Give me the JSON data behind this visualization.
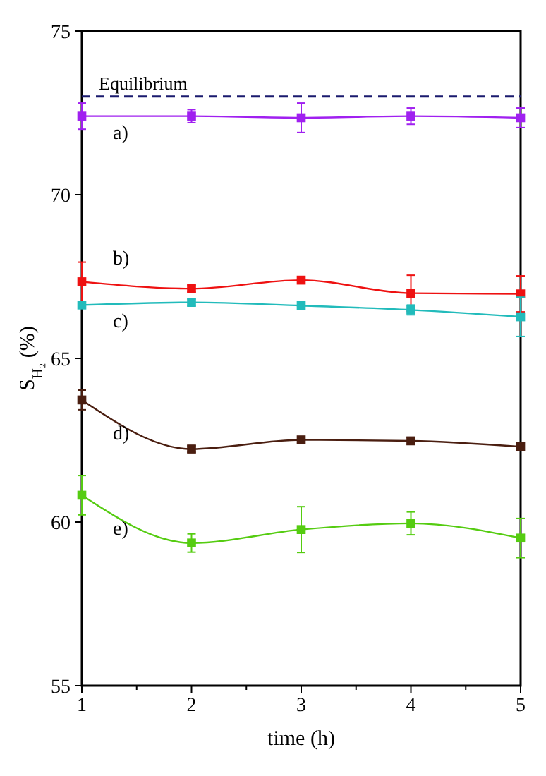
{
  "chart_data": {
    "type": "line",
    "xlabel": "time (h)",
    "ylabel": "S$_{H₂}$ (%)",
    "x": [
      1,
      2,
      3,
      4,
      5
    ],
    "xlim": [
      1,
      5
    ],
    "xticks": [
      1,
      {
        "value": 1.5,
        "label": null
      },
      2,
      {
        "value": 2.5,
        "label": null
      },
      3,
      {
        "value": 3.5,
        "label": null
      },
      4,
      {
        "value": 4.5,
        "label": null
      },
      5
    ],
    "ylim": [
      55,
      75
    ],
    "yticks": [
      55,
      60,
      65,
      70,
      75
    ],
    "grid": false,
    "marker": "square",
    "line_style": "solid",
    "ref_lines": [
      {
        "axis": "y",
        "value": 73,
        "label": "Equilibrium",
        "color": "#1a1a6e",
        "line_style": "dashed"
      }
    ],
    "series": [
      {
        "name": "a)",
        "color": "#a020f0",
        "values": [
          72.4,
          72.4,
          72.35,
          72.4,
          72.35
        ],
        "errors": [
          0.4,
          0.2,
          0.45,
          0.25,
          0.3
        ]
      },
      {
        "name": "b)",
        "color": "#ee1111",
        "values": [
          67.34,
          67.13,
          67.39,
          66.99,
          66.97
        ],
        "errors": [
          0.6,
          0.1,
          0.1,
          0.55,
          0.55
        ]
      },
      {
        "name": "c)",
        "color": "#22bbbb",
        "values": [
          66.63,
          66.71,
          66.61,
          66.48,
          66.27
        ],
        "errors": [
          0.1,
          0.1,
          0.1,
          0.15,
          0.6
        ]
      },
      {
        "name": "d)",
        "color": "#4a1e10",
        "values": [
          63.73,
          62.23,
          62.51,
          62.48,
          62.3
        ],
        "errors": [
          0.3,
          0.1,
          0.1,
          0.1,
          0.1
        ]
      },
      {
        "name": "e)",
        "color": "#55cc11",
        "values": [
          60.82,
          59.36,
          59.77,
          59.96,
          59.51
        ],
        "errors": [
          0.6,
          0.28,
          0.7,
          0.35,
          0.6
        ]
      }
    ]
  }
}
